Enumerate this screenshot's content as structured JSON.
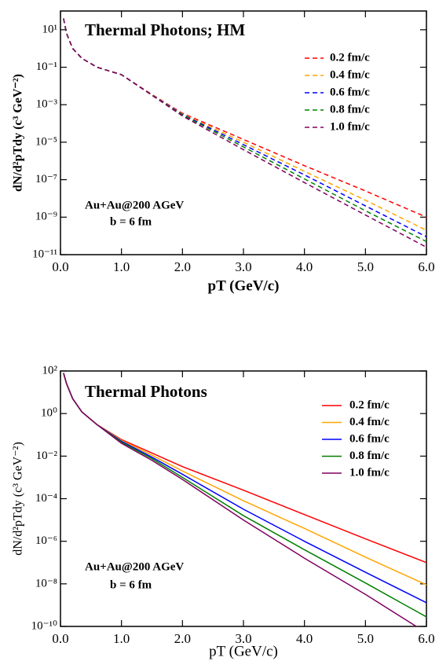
{
  "chart_data": [
    {
      "type": "line",
      "title": "Thermal Photons; HM",
      "annotations": [
        "Au+Au@200 AGeV",
        "b = 6 fm"
      ],
      "x_label": "pT (GeV/c)",
      "y_label": "dN/d²pTdy (c³ GeV⁻²)",
      "y_scale": "log",
      "line_style": "dashed",
      "legend": "upper right",
      "xlim": [
        0,
        6
      ],
      "ylim": [
        1e-11,
        100
      ],
      "xticks": [
        {
          "value": 0,
          "label": "0.0"
        },
        {
          "value": 1,
          "label": "1.0"
        },
        {
          "value": 2,
          "label": "2.0"
        },
        {
          "value": 3,
          "label": "3.0"
        },
        {
          "value": 4,
          "label": "4.0"
        },
        {
          "value": 5,
          "label": "5.0"
        },
        {
          "value": 6,
          "label": "6.0"
        }
      ],
      "yticks": [
        {
          "value": 10,
          "label": "10¹"
        },
        {
          "value": 0.1,
          "label": "10⁻¹"
        },
        {
          "value": 0.001,
          "label": "10⁻³"
        },
        {
          "value": 1e-05,
          "label": "10⁻⁵"
        },
        {
          "value": 1e-07,
          "label": "10⁻⁷"
        },
        {
          "value": 1e-09,
          "label": "10⁻⁹"
        },
        {
          "value": 1e-11,
          "label": "10⁻¹¹"
        }
      ],
      "x": [
        0.05,
        0.1,
        0.2,
        0.35,
        0.6,
        1.0,
        1.5,
        2,
        3,
        4,
        5,
        6
      ],
      "series": [
        {
          "name": "0.2 fm/c",
          "color": "#ff0000",
          "values": [
            40,
            6.3,
            1.0,
            0.3,
            0.1,
            0.04,
            0.0035,
            0.00035,
            1.4e-05,
            5.6e-07,
            2.5e-08,
            1e-09
          ]
        },
        {
          "name": "0.4 fm/c",
          "color": "#ffa500",
          "values": [
            40,
            6.3,
            1.0,
            0.3,
            0.1,
            0.04,
            0.0034,
            0.00032,
            1e-05,
            2.8e-07,
            8e-09,
            2e-10
          ]
        },
        {
          "name": "0.6 fm/c",
          "color": "#0000ff",
          "values": [
            40,
            6.3,
            1.0,
            0.3,
            0.1,
            0.04,
            0.0033,
            0.0003,
            7.4e-06,
            1.8e-07,
            4e-09,
            9e-11
          ]
        },
        {
          "name": "0.8 fm/c",
          "color": "#008000",
          "values": [
            40,
            6.3,
            1.0,
            0.3,
            0.1,
            0.04,
            0.0032,
            0.00028,
            5.6e-06,
            1.1e-07,
            2.2e-09,
            5e-11
          ]
        },
        {
          "name": "1.0 fm/c",
          "color": "#800060",
          "values": [
            40,
            6.3,
            1.0,
            0.3,
            0.1,
            0.04,
            0.0032,
            0.00025,
            4e-06,
            7e-08,
            1.3e-09,
            2.5e-11
          ]
        }
      ]
    },
    {
      "type": "line",
      "title": "Thermal Photons",
      "annotations": [
        "Au+Au@200 AGeV",
        "b = 6 fm"
      ],
      "x_label": "pT (GeV/c)",
      "y_label": "dN/d²pTdy (c³ GeV⁻²)",
      "y_scale": "log",
      "line_style": "solid",
      "legend": "upper right",
      "xlim": [
        0,
        6
      ],
      "ylim": [
        1e-10,
        100
      ],
      "xticks": [
        {
          "value": 0,
          "label": "0.0"
        },
        {
          "value": 1,
          "label": "1.0"
        },
        {
          "value": 2,
          "label": "2.0"
        },
        {
          "value": 3,
          "label": "3.0"
        },
        {
          "value": 4,
          "label": "4.0"
        },
        {
          "value": 5,
          "label": "5.0"
        },
        {
          "value": 6,
          "label": "6.0"
        }
      ],
      "yticks": [
        {
          "value": 100,
          "label": "10²"
        },
        {
          "value": 1,
          "label": "10⁰"
        },
        {
          "value": 0.01,
          "label": "10⁻²"
        },
        {
          "value": 0.0001,
          "label": "10⁻⁴"
        },
        {
          "value": 1e-06,
          "label": "10⁻⁶"
        },
        {
          "value": 1e-08,
          "label": "10⁻⁸"
        },
        {
          "value": 1e-10,
          "label": "10⁻¹⁰"
        }
      ],
      "x": [
        0.05,
        0.1,
        0.2,
        0.35,
        0.6,
        1.0,
        1.5,
        2,
        3,
        4,
        5,
        6
      ],
      "series": [
        {
          "name": "0.2 fm/c",
          "color": "#ff0000",
          "values": [
            80,
            25,
            5,
            1.2,
            0.3,
            0.06,
            0.014,
            0.0032,
            0.00025,
            1.8e-05,
            1.3e-06,
            1e-07
          ]
        },
        {
          "name": "0.4 fm/c",
          "color": "#ffa500",
          "values": [
            80,
            25,
            5,
            1.2,
            0.3,
            0.055,
            0.011,
            0.002,
            8e-05,
            4e-06,
            1.8e-07,
            9e-09
          ]
        },
        {
          "name": "0.6 fm/c",
          "color": "#0000ff",
          "values": [
            80,
            25,
            5,
            1.2,
            0.3,
            0.05,
            0.0089,
            0.0014,
            3.2e-05,
            1e-06,
            3.5e-08,
            1.3e-09
          ]
        },
        {
          "name": "0.8 fm/c",
          "color": "#008000",
          "values": [
            80,
            25,
            5,
            1.2,
            0.3,
            0.045,
            0.0076,
            0.001,
            1.6e-05,
            4e-07,
            1.1e-08,
            2.8e-10
          ]
        },
        {
          "name": "1.0 fm/c",
          "color": "#800060",
          "values": [
            80,
            25,
            5,
            1.2,
            0.3,
            0.04,
            0.0063,
            0.0008,
            1e-05,
            1.6e-07,
            3.2e-09,
            5e-11
          ]
        }
      ]
    }
  ]
}
